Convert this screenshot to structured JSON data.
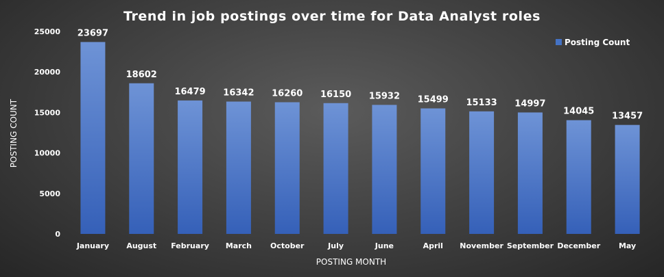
{
  "chart_data": {
    "type": "bar",
    "title": "Trend in job postings over time for Data Analyst roles",
    "xlabel": "POSTING MONTH",
    "ylabel": "POSTING COUNT",
    "categories": [
      "January",
      "August",
      "February",
      "March",
      "October",
      "July",
      "June",
      "April",
      "November",
      "September",
      "December",
      "May"
    ],
    "series": [
      {
        "name": "Posting Count",
        "values": [
          23697,
          18602,
          16479,
          16342,
          16260,
          16150,
          15932,
          15499,
          15133,
          14997,
          14045,
          13457
        ],
        "color": "#4472c4"
      }
    ],
    "ylim": [
      0,
      25000
    ],
    "yticks": [
      0,
      5000,
      10000,
      15000,
      20000,
      25000
    ],
    "grid": false,
    "legend": "top-right",
    "data_labels": true
  }
}
